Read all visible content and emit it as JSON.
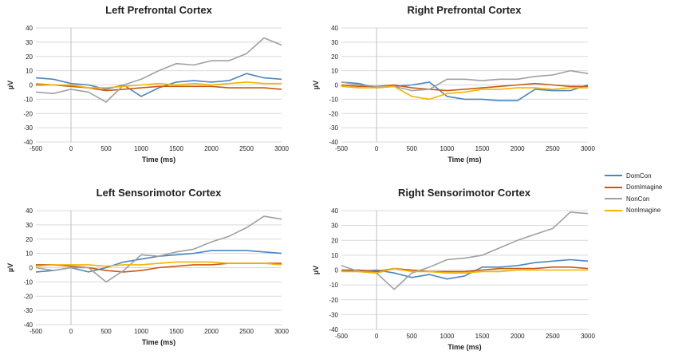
{
  "legend": [
    {
      "name": "DomCon",
      "color": "#4a86c0"
    },
    {
      "name": "DomImagine",
      "color": "#c55a11"
    },
    {
      "name": "NonCon",
      "color": "#a0a0a0"
    },
    {
      "name": "NonImagine",
      "color": "#f2b400"
    }
  ],
  "chart_data": [
    {
      "type": "line",
      "title": "Left Prefrontal Cortex",
      "xlabel": "Time (ms)",
      "ylabel": "µV",
      "xlim": [
        -500,
        3000
      ],
      "ylim": [
        -40,
        40
      ],
      "xticks": [
        "-500",
        "0",
        "500",
        "1000",
        "1500",
        "2000",
        "2500",
        "3000"
      ],
      "yticks": [
        "40",
        "30",
        "20",
        "10",
        "0",
        "-10",
        "-20",
        "-30",
        "-40"
      ],
      "x": [
        -500,
        -250,
        0,
        250,
        500,
        750,
        1000,
        1250,
        1500,
        1750,
        2000,
        2250,
        2500,
        2750,
        3000
      ],
      "series": [
        {
          "name": "DomCon",
          "values": [
            5,
            4,
            1,
            0,
            -3,
            0,
            -8,
            -2,
            2,
            3,
            2,
            3,
            8,
            5,
            4
          ]
        },
        {
          "name": "DomImagine",
          "values": [
            0,
            0,
            -1,
            -2,
            -4,
            -3,
            -2,
            -1,
            -1,
            -1,
            -1,
            -2,
            -2,
            -2,
            -3
          ]
        },
        {
          "name": "NonCon",
          "values": [
            -5,
            -6,
            -3,
            -5,
            -12,
            0,
            4,
            10,
            15,
            14,
            17,
            17,
            22,
            33,
            28
          ]
        },
        {
          "name": "NonImagine",
          "values": [
            1,
            0,
            0,
            -2,
            -2,
            -1,
            0,
            1,
            0,
            1,
            0,
            1,
            2,
            1,
            1
          ]
        }
      ]
    },
    {
      "type": "line",
      "title": "Right Prefrontal Cortex",
      "xlabel": "Time (ms)",
      "ylabel": "µV",
      "xlim": [
        -500,
        3000
      ],
      "ylim": [
        -40,
        40
      ],
      "xticks": [
        "-500",
        "0",
        "500",
        "1000",
        "1500",
        "2000",
        "2500",
        "3000"
      ],
      "yticks": [
        "40",
        "30",
        "20",
        "10",
        "0",
        "-10",
        "-20",
        "-30",
        "-40"
      ],
      "x": [
        -500,
        -250,
        0,
        250,
        500,
        750,
        1000,
        1250,
        1500,
        1750,
        2000,
        2250,
        2500,
        2750,
        3000
      ],
      "series": [
        {
          "name": "DomCon",
          "values": [
            2,
            1,
            -2,
            -1,
            0,
            2,
            -8,
            -10,
            -10,
            -11,
            -11,
            -3,
            -4,
            -4,
            0
          ]
        },
        {
          "name": "DomImagine",
          "values": [
            0,
            -1,
            -1,
            0,
            -2,
            -3,
            -4,
            -3,
            -2,
            -1,
            0,
            1,
            0,
            -1,
            -1
          ]
        },
        {
          "name": "NonCon",
          "values": [
            2,
            0,
            -1,
            -1,
            -4,
            -3,
            4,
            4,
            3,
            4,
            4,
            6,
            7,
            10,
            8
          ]
        },
        {
          "name": "NonImagine",
          "values": [
            -1,
            -2,
            -2,
            -1,
            -8,
            -10,
            -6,
            -5,
            -3,
            -3,
            -2,
            -2,
            -3,
            -2,
            -2
          ]
        }
      ]
    },
    {
      "type": "line",
      "title": "Left Sensorimotor Cortex",
      "xlabel": "Time (ms)",
      "ylabel": "µV",
      "xlim": [
        -500,
        3000
      ],
      "ylim": [
        -40,
        40
      ],
      "xticks": [
        "-500",
        "0",
        "500",
        "1000",
        "1500",
        "2000",
        "2500",
        "3000"
      ],
      "yticks": [
        "40",
        "30",
        "20",
        "10",
        "0",
        "-10",
        "-20",
        "-30",
        "-40"
      ],
      "x": [
        -500,
        -250,
        0,
        250,
        500,
        750,
        1000,
        1250,
        1500,
        1750,
        2000,
        2250,
        2500,
        2750,
        3000
      ],
      "series": [
        {
          "name": "DomCon",
          "values": [
            -3,
            -2,
            0,
            -3,
            0,
            4,
            6,
            8,
            9,
            10,
            12,
            12,
            12,
            11,
            10
          ]
        },
        {
          "name": "DomImagine",
          "values": [
            2,
            2,
            1,
            0,
            -2,
            -3,
            -2,
            0,
            1,
            2,
            2,
            3,
            3,
            3,
            3
          ]
        },
        {
          "name": "NonCon",
          "values": [
            0,
            -2,
            0,
            0,
            -10,
            -2,
            9,
            8,
            11,
            13,
            18,
            22,
            28,
            36,
            34
          ]
        },
        {
          "name": "NonImagine",
          "values": [
            1,
            2,
            2,
            2,
            1,
            2,
            2,
            3,
            4,
            4,
            4,
            3,
            3,
            3,
            2
          ]
        }
      ]
    },
    {
      "type": "line",
      "title": "Right Sensorimotor Cortex",
      "xlabel": "Time (ms)",
      "ylabel": "µV",
      "xlim": [
        -500,
        3000
      ],
      "ylim": [
        -40,
        40
      ],
      "xticks": [
        "-500",
        "0",
        "500",
        "1000",
        "1500",
        "2000",
        "2500",
        "3000"
      ],
      "yticks": [
        "40",
        "30",
        "20",
        "10",
        "0",
        "-10",
        "-20",
        "-30",
        "-40"
      ],
      "x": [
        -500,
        -250,
        0,
        250,
        500,
        750,
        1000,
        1250,
        1500,
        1750,
        2000,
        2250,
        2500,
        2750,
        3000
      ],
      "series": [
        {
          "name": "DomCon",
          "values": [
            0,
            -1,
            0,
            -2,
            -5,
            -3,
            -6,
            -4,
            2,
            2,
            3,
            5,
            6,
            7,
            6
          ]
        },
        {
          "name": "DomImagine",
          "values": [
            0,
            0,
            -1,
            1,
            0,
            -1,
            -1,
            -1,
            0,
            1,
            1,
            1,
            2,
            2,
            1
          ]
        },
        {
          "name": "NonCon",
          "values": [
            3,
            -1,
            -2,
            -13,
            -2,
            2,
            7,
            8,
            10,
            15,
            20,
            24,
            28,
            39,
            38
          ]
        },
        {
          "name": "NonImagine",
          "values": [
            -1,
            -1,
            -2,
            1,
            -1,
            -1,
            -2,
            -2,
            -1,
            -1,
            0,
            0,
            0,
            0,
            0
          ]
        }
      ]
    }
  ]
}
